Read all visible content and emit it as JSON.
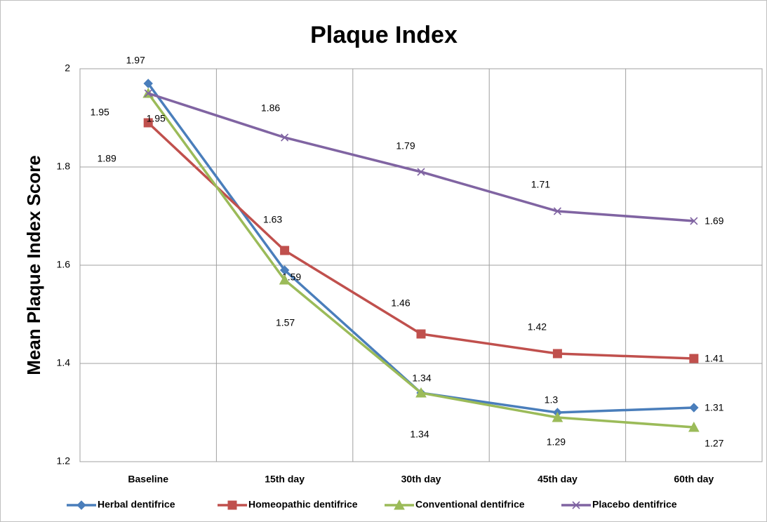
{
  "chart_data": {
    "type": "line",
    "title": "Plaque Index",
    "y_label": "Mean  Plaque Index Score",
    "categories": [
      "Baseline",
      "15th day",
      "30th day",
      "45th day",
      "60th day"
    ],
    "series": [
      {
        "name": "Herbal dentifrice",
        "color": "#4a7ebb",
        "marker": "diamond",
        "values": [
          1.97,
          1.59,
          1.34,
          1.3,
          1.31
        ]
      },
      {
        "name": "Homeopathic dentifrice",
        "color": "#c0504d",
        "marker": "square",
        "values": [
          1.89,
          1.63,
          1.46,
          1.42,
          1.41
        ]
      },
      {
        "name": "Conventional dentifrice",
        "color": "#9bbb59",
        "marker": "triangle",
        "values": [
          1.95,
          1.57,
          1.34,
          1.29,
          1.27
        ]
      },
      {
        "name": "Placebo dentifrice",
        "color": "#8064a2",
        "marker": "x",
        "values": [
          1.95,
          1.86,
          1.79,
          1.71,
          1.69
        ]
      }
    ],
    "ylim": [
      1.2,
      2
    ],
    "yticks": [
      1.2,
      1.4,
      1.6,
      1.8,
      2
    ],
    "grid": true,
    "legend": "bottom"
  }
}
